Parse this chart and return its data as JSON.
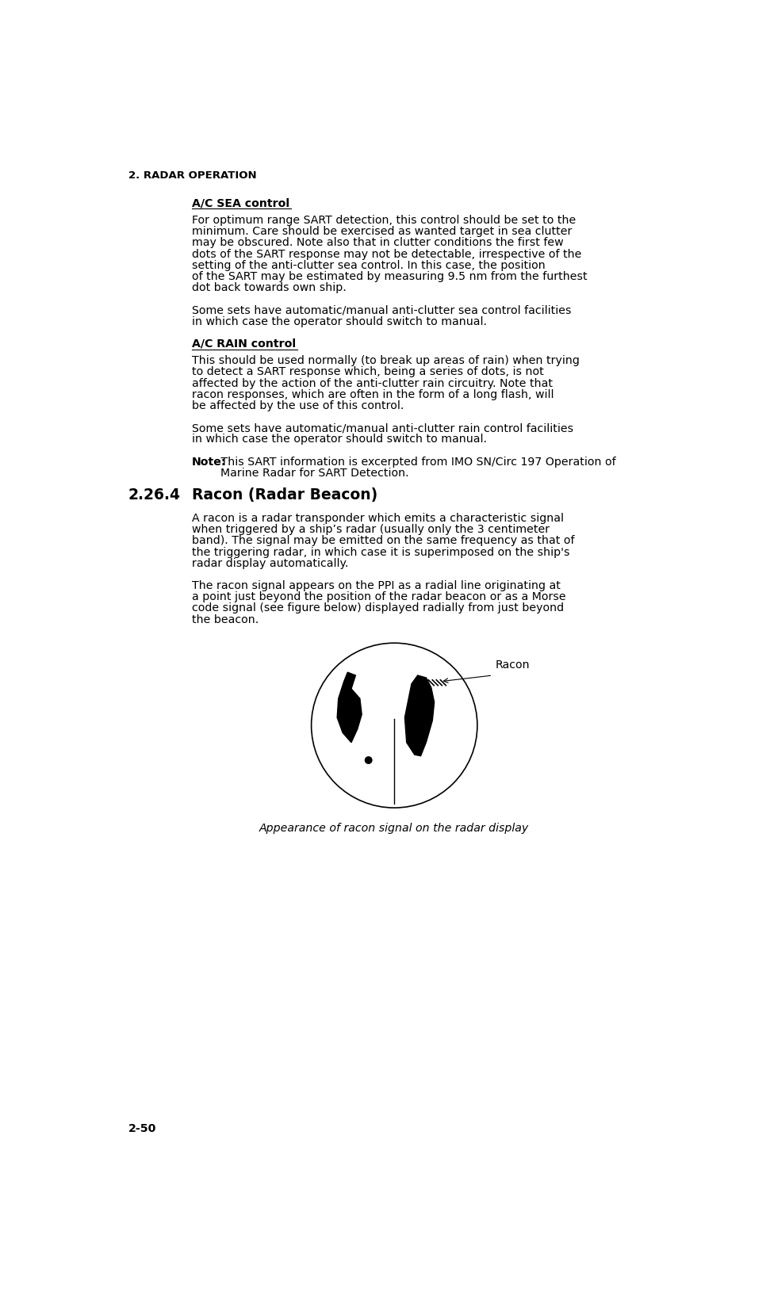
{
  "header": "2. RADAR OPERATION",
  "page_num": "2-50",
  "section_num": "2.26.4",
  "section_title": "Racon (Radar Beacon)",
  "ac_sea_title": "A/C SEA control",
  "ac_sea_para1": "For optimum range SART detection, this control should be set to the minimum. Care should be exercised as wanted target in sea clutter may be obscured. Note also that in clutter conditions the first few dots of the SART response may not be detectable, irrespective of the setting of the anti-clutter sea control. In this case, the position of the SART may be estimated by measuring 9.5 nm from the furthest dot back towards own ship.",
  "ac_sea_para2": "Some sets have automatic/manual anti-clutter sea control facilities in which case the operator should switch to manual.",
  "ac_rain_title": "A/C RAIN control",
  "ac_rain_para1": "This should be used normally (to break up areas of rain) when trying to detect a SART response which, being a series of dots, is not affected by the action of the anti-clutter rain circuitry. Note that racon responses, which are often in the form of a long flash, will be affected by the use of this control.",
  "ac_rain_para2": "Some sets have automatic/manual anti-clutter rain control facilities in which case the operator should switch to manual.",
  "note_bold": "Note:",
  "note_rest1": " This SART information is excerpted from IMO SN/Circ 197 Operation of",
  "note_rest2": "        Marine Radar for SART Detection.",
  "racon_para1": "A racon is a radar transponder which emits a characteristic signal when triggered by a ship’s radar (usually only the 3 centimeter band). The signal may be emitted on the same frequency as that of the triggering radar, in which case it is superimposed on the ship's radar display automatically.",
  "racon_para2": "The racon signal appears on the PPI as a radial line originating at a point just beyond the position of the radar beacon or as a Morse code signal (see figure below) displayed radially from just beyond the beacon.",
  "fig_caption": "Appearance of racon signal on the radar display",
  "racon_label": "Racon",
  "bg_color": "#ffffff",
  "text_color": "#000000"
}
